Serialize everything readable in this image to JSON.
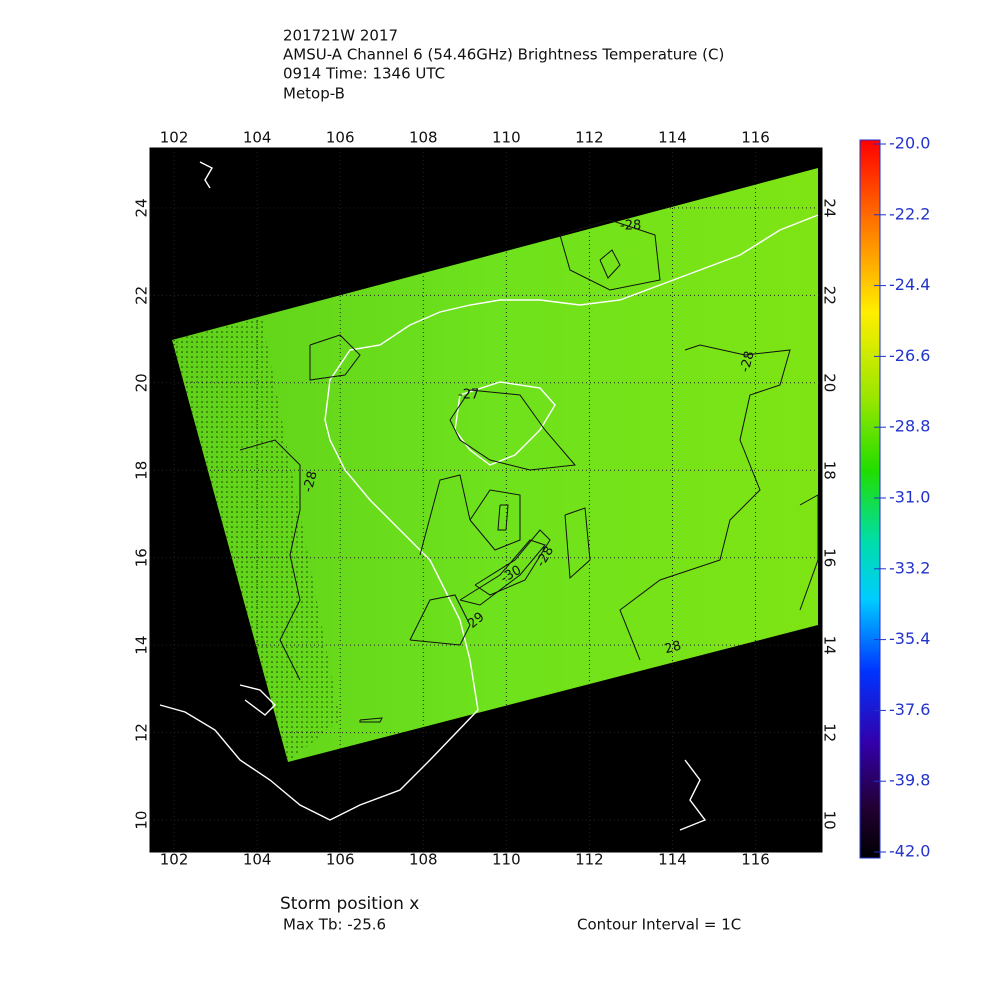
{
  "header": {
    "lines": [
      "201721W 2017",
      "AMSU-A Channel 6 (54.46GHz) Brightness Temperature (C)",
      "0914 Time: 1346 UTC",
      "Metop-B"
    ]
  },
  "map": {
    "xlim": [
      101.42,
      117.6
    ],
    "ylim": [
      9.27,
      25.37
    ],
    "xticks": [
      102,
      104,
      106,
      108,
      110,
      112,
      114,
      116
    ],
    "yticks": [
      10,
      12,
      14,
      16,
      18,
      20,
      22,
      24
    ]
  },
  "colorbar": {
    "lim": [
      -42,
      -20
    ],
    "ticks": [
      {
        "value": -20,
        "label": "-20.0"
      },
      {
        "value": -22.2,
        "label": "-22.2"
      },
      {
        "value": -24.4,
        "label": "-24.4"
      },
      {
        "value": -26.6,
        "label": "-26.6"
      },
      {
        "value": -28.8,
        "label": "-28.8"
      },
      {
        "value": -31,
        "label": "-31.0"
      },
      {
        "value": -33.2,
        "label": "-33.2"
      },
      {
        "value": -35.4,
        "label": "-35.4"
      },
      {
        "value": -37.6,
        "label": "-37.6"
      },
      {
        "value": -39.8,
        "label": "-39.8"
      },
      {
        "value": -42,
        "label": "-42.0"
      }
    ]
  },
  "contour_labels": [
    "-28",
    "-27",
    "-28",
    "-28",
    "-30",
    "-28",
    "29",
    "28"
  ],
  "footer": {
    "storm_position": "Storm position x",
    "max_tb": "Max Tb: -25.6",
    "contour_interval": "Contour Interval = 1C"
  }
}
